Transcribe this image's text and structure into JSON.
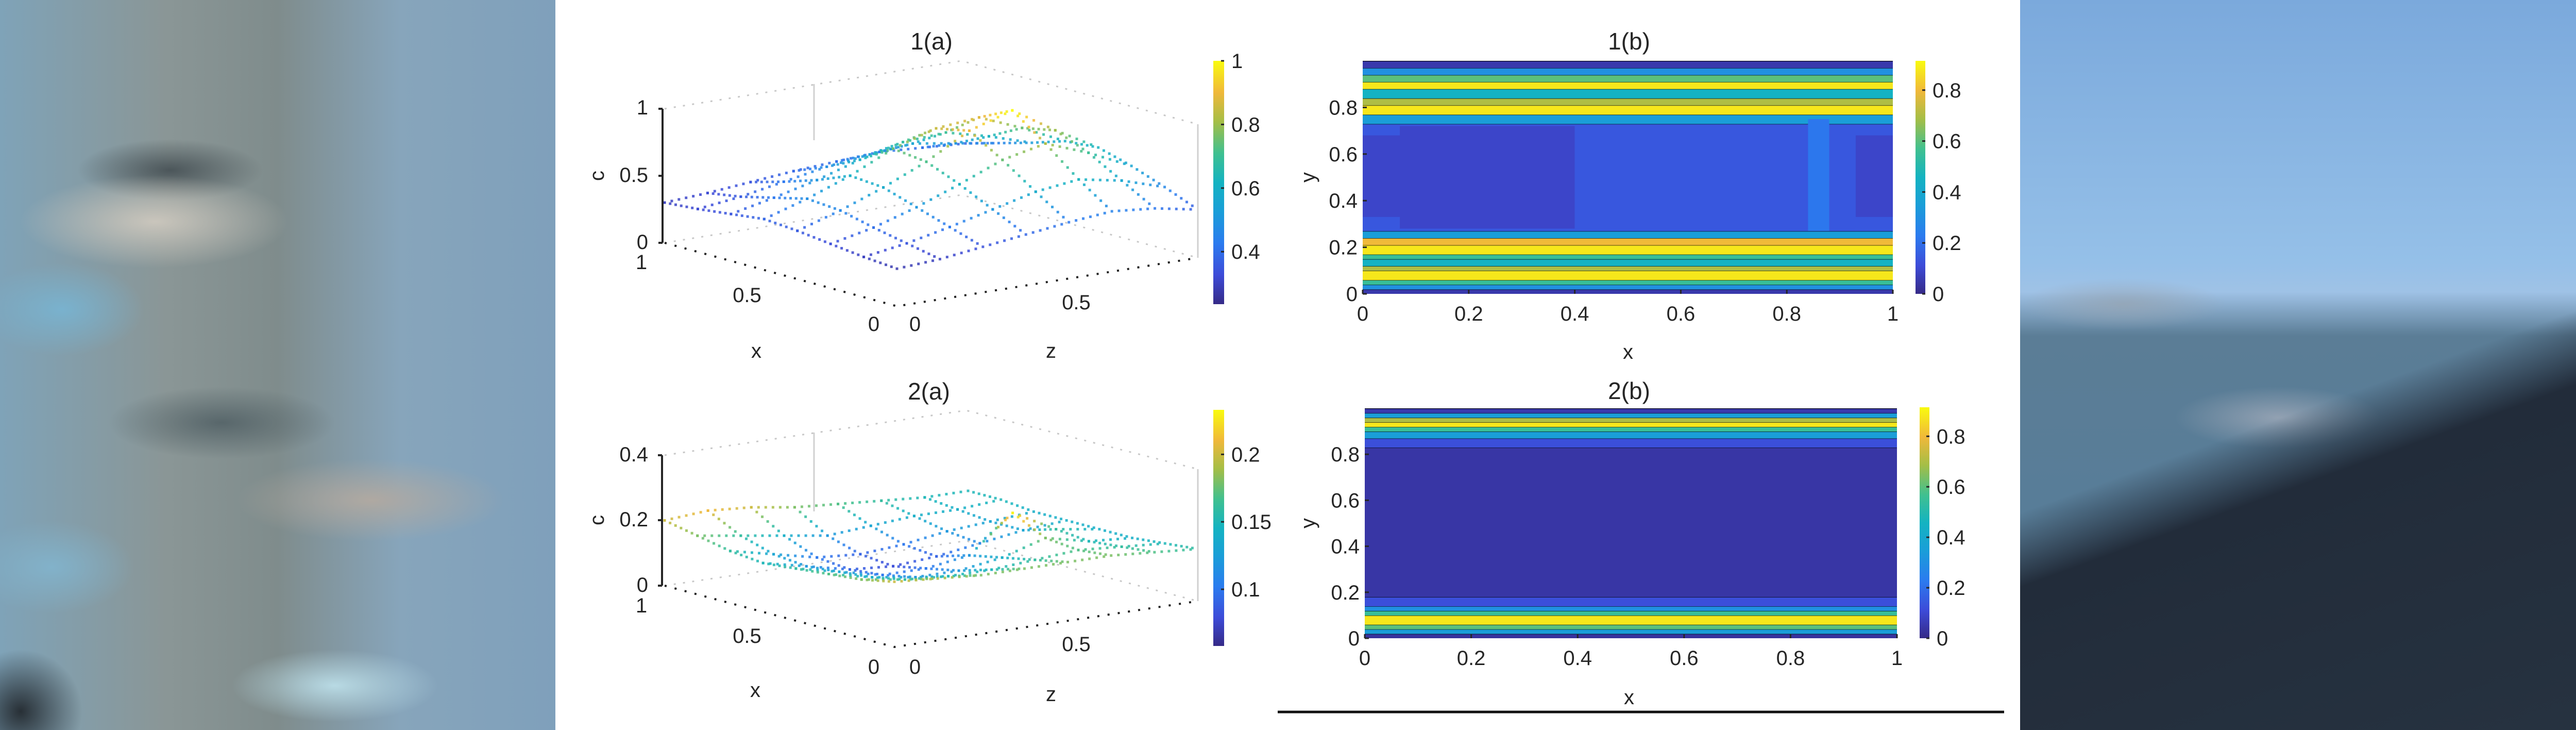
{
  "figure": {
    "rule_line": true
  },
  "chart_data": [
    {
      "id": "1a",
      "type": "scatter",
      "subtype": "3d-dotted-mesh",
      "title": "1(a)",
      "xlabel": "x",
      "ylabel": "z",
      "zlabel": "c",
      "xlim": [
        0,
        1
      ],
      "ylim": [
        0,
        1
      ],
      "zlim": [
        0,
        1
      ],
      "x_ticks": [
        "0",
        "0.5",
        "1"
      ],
      "y_ticks": [
        "0",
        "0.5"
      ],
      "z_ticks": [
        "0",
        "0.5",
        "1"
      ],
      "colorbar": {
        "min": 0.235,
        "max": 1,
        "ticks": [
          "0.4",
          "0.6",
          "0.8",
          "1"
        ],
        "tick_values": [
          0.4,
          0.6,
          0.8,
          1.0
        ],
        "colormap": "parula"
      },
      "surface_description": "c rises from ~0.3 at x=1 edge to a peak ~1.0 near z=0.5 at the back, low values (~0.25-0.35) near x=0,z=0",
      "grid_values": [
        [
          0.3,
          0.32,
          0.35,
          0.38,
          0.4,
          0.42,
          0.4,
          0.38
        ],
        [
          0.32,
          0.36,
          0.42,
          0.48,
          0.52,
          0.55,
          0.5,
          0.45
        ],
        [
          0.35,
          0.42,
          0.5,
          0.6,
          0.68,
          0.7,
          0.62,
          0.52
        ],
        [
          0.38,
          0.48,
          0.6,
          0.75,
          0.85,
          0.88,
          0.75,
          0.6
        ],
        [
          0.36,
          0.46,
          0.58,
          0.72,
          0.9,
          1.0,
          0.8,
          0.62
        ],
        [
          0.33,
          0.4,
          0.5,
          0.62,
          0.75,
          0.82,
          0.7,
          0.55
        ],
        [
          0.3,
          0.35,
          0.42,
          0.5,
          0.58,
          0.62,
          0.56,
          0.46
        ],
        [
          0.28,
          0.3,
          0.34,
          0.38,
          0.42,
          0.45,
          0.42,
          0.36
        ]
      ]
    },
    {
      "id": "1b",
      "type": "heatmap",
      "title": "1(b)",
      "xlabel": "x",
      "ylabel": "y",
      "xlim": [
        0,
        1
      ],
      "ylim": [
        0,
        1
      ],
      "x_ticks": [
        "0",
        "0.2",
        "0.4",
        "0.6",
        "0.8",
        "1"
      ],
      "y_ticks": [
        "0",
        "0.2",
        "0.4",
        "0.6",
        "0.8"
      ],
      "colorbar": {
        "min": 0,
        "max": 0.915,
        "ticks": [
          "0",
          "0.2",
          "0.4",
          "0.6",
          "0.8"
        ],
        "tick_values": [
          0,
          0.2,
          0.4,
          0.6,
          0.8
        ],
        "colormap": "parula"
      },
      "bands_y": [
        {
          "y0": 0.0,
          "y1": 0.02,
          "value": 0.05
        },
        {
          "y0": 0.02,
          "y1": 0.04,
          "value": 0.3
        },
        {
          "y0": 0.04,
          "y1": 0.06,
          "value": 0.55
        },
        {
          "y0": 0.06,
          "y1": 0.1,
          "value": 0.88
        },
        {
          "y0": 0.1,
          "y1": 0.12,
          "value": 0.7
        },
        {
          "y0": 0.12,
          "y1": 0.15,
          "value": 0.45
        },
        {
          "y0": 0.15,
          "y1": 0.17,
          "value": 0.55
        },
        {
          "y0": 0.17,
          "y1": 0.21,
          "value": 0.88
        },
        {
          "y0": 0.21,
          "y1": 0.24,
          "value": 0.8
        },
        {
          "y0": 0.24,
          "y1": 0.27,
          "value": 0.35
        },
        {
          "y0": 0.27,
          "y1": 0.73,
          "value": 0.14
        },
        {
          "y0": 0.73,
          "y1": 0.77,
          "value": 0.35
        },
        {
          "y0": 0.77,
          "y1": 0.81,
          "value": 0.88
        },
        {
          "y0": 0.81,
          "y1": 0.84,
          "value": 0.7
        },
        {
          "y0": 0.84,
          "y1": 0.88,
          "value": 0.45
        },
        {
          "y0": 0.88,
          "y1": 0.91,
          "value": 0.88
        },
        {
          "y0": 0.91,
          "y1": 0.94,
          "value": 0.6
        },
        {
          "y0": 0.94,
          "y1": 0.97,
          "value": 0.3
        },
        {
          "y0": 0.97,
          "y1": 1.0,
          "value": 0.05
        }
      ],
      "core_regions": [
        {
          "x0": 0.0,
          "x1": 0.07,
          "y0": 0.33,
          "y1": 0.68,
          "value": 0.09
        },
        {
          "x0": 0.07,
          "x1": 0.4,
          "y0": 0.28,
          "y1": 0.72,
          "value": 0.09
        },
        {
          "x0": 0.4,
          "x1": 0.84,
          "y0": 0.28,
          "y1": 0.72,
          "value": 0.14
        },
        {
          "x0": 0.84,
          "x1": 0.88,
          "y0": 0.27,
          "y1": 0.75,
          "value": 0.22
        },
        {
          "x0": 0.88,
          "x1": 0.93,
          "y0": 0.28,
          "y1": 0.72,
          "value": 0.14
        },
        {
          "x0": 0.93,
          "x1": 1.0,
          "y0": 0.33,
          "y1": 0.68,
          "value": 0.09
        }
      ]
    },
    {
      "id": "2a",
      "type": "scatter",
      "subtype": "3d-dotted-mesh",
      "title": "2(a)",
      "xlabel": "x",
      "ylabel": "z",
      "zlabel": "c",
      "xlim": [
        0,
        1
      ],
      "ylim": [
        0,
        1
      ],
      "zlim": [
        0,
        0.4
      ],
      "x_ticks": [
        "0",
        "0.5",
        "1"
      ],
      "y_ticks": [
        "0",
        "0.5"
      ],
      "z_ticks": [
        "0",
        "0.2",
        "0.4"
      ],
      "colorbar": {
        "min": 0.058,
        "max": 0.233,
        "ticks": [
          "0.1",
          "0.15",
          "0.2"
        ],
        "tick_values": [
          0.1,
          0.15,
          0.2
        ],
        "colormap": "parula"
      },
      "surface_description": "near-flat surface c ~0.1-0.2 with a small peak ~0.25 near the back center",
      "grid_values": [
        [
          0.2,
          0.21,
          0.2,
          0.18,
          0.17,
          0.16,
          0.15,
          0.15
        ],
        [
          0.18,
          0.16,
          0.14,
          0.12,
          0.13,
          0.14,
          0.14,
          0.15
        ],
        [
          0.16,
          0.13,
          0.1,
          0.09,
          0.1,
          0.12,
          0.13,
          0.14
        ],
        [
          0.15,
          0.12,
          0.09,
          0.08,
          0.09,
          0.11,
          0.13,
          0.14
        ],
        [
          0.16,
          0.13,
          0.1,
          0.1,
          0.12,
          0.23,
          0.16,
          0.14
        ],
        [
          0.17,
          0.14,
          0.12,
          0.12,
          0.14,
          0.18,
          0.15,
          0.14
        ],
        [
          0.18,
          0.16,
          0.15,
          0.15,
          0.16,
          0.17,
          0.16,
          0.15
        ],
        [
          0.2,
          0.19,
          0.18,
          0.18,
          0.18,
          0.18,
          0.17,
          0.16
        ]
      ]
    },
    {
      "id": "2b",
      "type": "heatmap",
      "title": "2(b)",
      "xlabel": "x",
      "ylabel": "y",
      "xlim": [
        0,
        1
      ],
      "ylim": [
        0,
        1
      ],
      "x_ticks": [
        "0",
        "0.2",
        "0.4",
        "0.6",
        "0.8",
        "1"
      ],
      "y_ticks": [
        "0",
        "0.2",
        "0.4",
        "0.6",
        "0.8"
      ],
      "colorbar": {
        "min": 0,
        "max": 0.915,
        "ticks": [
          "0",
          "0.2",
          "0.4",
          "0.6",
          "0.8"
        ],
        "tick_values": [
          0,
          0.2,
          0.4,
          0.6,
          0.8
        ],
        "colormap": "parula"
      },
      "bands_y": [
        {
          "y0": 0.0,
          "y1": 0.02,
          "value": 0.03
        },
        {
          "y0": 0.02,
          "y1": 0.04,
          "value": 0.35
        },
        {
          "y0": 0.04,
          "y1": 0.06,
          "value": 0.6
        },
        {
          "y0": 0.06,
          "y1": 0.1,
          "value": 0.88
        },
        {
          "y0": 0.1,
          "y1": 0.12,
          "value": 0.55
        },
        {
          "y0": 0.12,
          "y1": 0.14,
          "value": 0.3
        },
        {
          "y0": 0.14,
          "y1": 0.18,
          "value": 0.12
        },
        {
          "y0": 0.18,
          "y1": 0.83,
          "value": 0.04
        },
        {
          "y0": 0.83,
          "y1": 0.87,
          "value": 0.12
        },
        {
          "y0": 0.87,
          "y1": 0.9,
          "value": 0.35
        },
        {
          "y0": 0.9,
          "y1": 0.92,
          "value": 0.55
        },
        {
          "y0": 0.92,
          "y1": 0.94,
          "value": 0.88
        },
        {
          "y0": 0.94,
          "y1": 0.96,
          "value": 0.7
        },
        {
          "y0": 0.96,
          "y1": 0.98,
          "value": 0.35
        },
        {
          "y0": 0.98,
          "y1": 1.0,
          "value": 0.05
        }
      ],
      "core_regions": []
    }
  ]
}
